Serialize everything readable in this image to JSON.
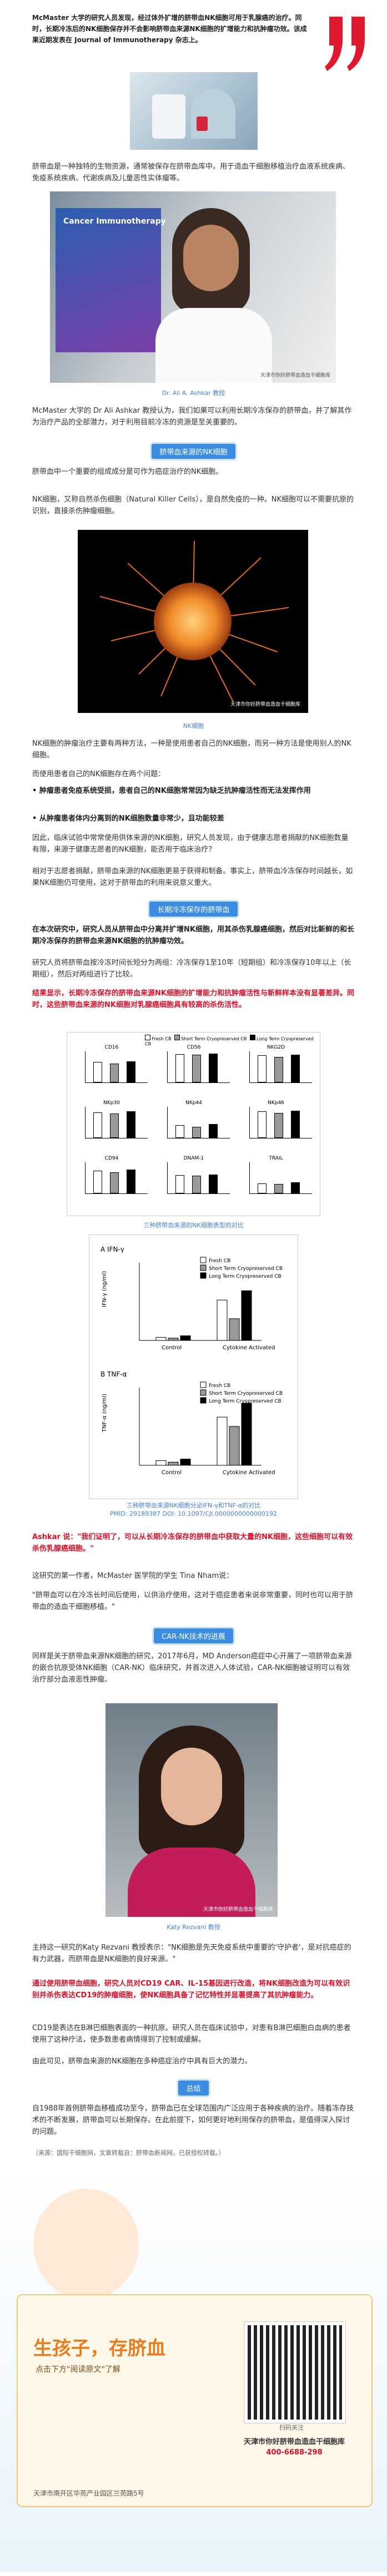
{
  "intro": {
    "text": "McMaster 大学的研究人员发现，经过体外扩增的脐带血NK细胞可用于乳腺癌的治疗。同时，长期冷冻后的NK细胞保存并不会影响脐带血来源NK细胞的扩增能力和抗肿瘤功效。该成果近期发表在 Journal of Immunotherapy 杂志上。",
    "quote_color": "#e0182d"
  },
  "para1": "脐带血是一种独特的生物资源，通常被保存在脐带血库中。用于造血干细胞移植治疗血液系统疾病、免疫系统疾病、代谢疾病及儿童恶性实体瘤等。",
  "photo1_caption": "Dr. Ali A. Ashkar 教授",
  "photo1_labels": {
    "poster_title": "Cancer Immunotherapy",
    "watermark": "天津市你好脐带血造血干细胞库"
  },
  "para2": "McMaster 大学的 Dr Ali Ashkar 教授认为，我们如果可以利用长期冷冻保存的脐带血，并了解其作为治疗产品的全部潜力，对于利用目前冷冻的资源是至关重要的。",
  "heading1": "脐带血来源的NK细胞",
  "para3": "脐带血中一个重要的组成成分是可作为癌症治疗的NK细胞。",
  "para4": "NK细胞，又称自然杀伤细胞（Natural Killer Cells），是自然免疫的一种。NK细胞可以不需要抗原的识别，直接杀伤肿瘤细胞。",
  "photo2_caption": "NK细胞",
  "photo2_watermark": "天津市你好脐带血造血干细胞库",
  "para5": "NK细胞的肿瘤治疗主要有两种方法，一种是使用患者自己的NK细胞，而另一种方法是使用别人的NK细胞。",
  "para6": "而使用患者自己的NK细胞存在两个问题：",
  "bullet1": "• 肿瘤患者免疫系统受损，患者自己的NK细胞常常因为缺乏抗肿瘤活性而无法发挥作用",
  "bullet2": "• 从肿瘤患者体内分离到的NK细胞数量非常少，且功能较差",
  "para7": "因此，临床试验中常常使用供体来源的NK细胞，研究人员发现，由于健康志愿者捐献的NK细胞数量有限，来源于健康志愿者的NK细胞，能否用于临床治疗？",
  "para8": "相对于志愿者捐献，脐带血来源的NK细胞更易于获得和制备。事实上，脐带血冷冻保存时间越长，如果NK细胞仍可使用，这对于脐带血的利用来说意义重大。",
  "heading2": "长期冷冻保存的脐带血",
  "para9": "在本次研究中，研究人员从脐带血中分离并扩增NK细胞，用其杀伤乳腺癌细胞，然后对比新鲜的和长期冷冻保存的脐带血来源NK细胞的抗肿瘤功效。",
  "para10": "研究人员将脐带血按冷冻时间长短分为两组：冷冻保存1至10年（短期组）和冷冻保存10年以上（长期组），然后对两组进行了比较。",
  "para11_red": "结果显示，长期冷冻保存的脐带血来源NK细胞的扩增能力和抗肿瘤活性与新鲜样本没有显著差异。同时，这些脐带血来源的NK细胞对乳腺癌细胞具有较高的杀伤活性。",
  "chart1_caption": "三种脐带血来源的NK细胞表型的对比",
  "chart1_legend": [
    "Fresh CB",
    "Short Term Cryopreserved CB",
    "Long Term Cryopreserved CB"
  ],
  "chart1_panels": [
    "CD16",
    "CD56",
    "NKG2D",
    "NKp30",
    "NKp44",
    "NKp46",
    "CD94",
    "DNAM-1",
    "TRAIL"
  ],
  "chart_data": [
    {
      "type": "bar",
      "title": "三种脐带血来源NK细胞表型对比",
      "categories": [
        "CD16",
        "CD56",
        "NKG2D",
        "NKp30",
        "NKp44",
        "NKp46",
        "CD94",
        "DNAM-1",
        "TRAIL"
      ],
      "series": [
        {
          "name": "Fresh CB",
          "values": [
            68,
            95,
            90,
            85,
            40,
            88,
            75,
            60,
            30
          ]
        },
        {
          "name": "Short Term Cryopreserved CB",
          "values": [
            62,
            92,
            85,
            80,
            35,
            82,
            70,
            58,
            28
          ]
        },
        {
          "name": "Long Term Cryopreserved CB",
          "values": [
            70,
            96,
            92,
            88,
            45,
            90,
            78,
            62,
            34
          ]
        }
      ]
    },
    {
      "type": "bar",
      "title": "A IFN-γ",
      "categories": [
        "Control",
        "Cytokine Activated"
      ],
      "series": [
        {
          "name": "Fresh CB",
          "values": [
            0.2,
            2.6
          ]
        },
        {
          "name": "Short Term Cryopreserved CB",
          "values": [
            0.15,
            1.4
          ]
        },
        {
          "name": "Long Term Cryopreserved CB",
          "values": [
            0.3,
            3.2
          ]
        }
      ],
      "ylabel": "IFN-γ (ng/ml)"
    },
    {
      "type": "bar",
      "title": "B TNF-α",
      "categories": [
        "Control",
        "Cytokine Activated"
      ],
      "series": [
        {
          "name": "Fresh CB",
          "values": [
            0.3,
            3.1
          ]
        },
        {
          "name": "Short Term Cryopreserved CB",
          "values": [
            0.2,
            2.5
          ]
        },
        {
          "name": "Long Term Cryopreserved CB",
          "values": [
            0.4,
            4.0
          ]
        }
      ],
      "ylabel": "TNF-α (ng/ml)"
    }
  ],
  "chart2_caption1": "三种脐带血来源NK细胞分泌IFN-γ和TNF-α的对比",
  "chart2_caption2": "PMID: 29189387 DOI: 10.1097/CJI.0000000000000192",
  "para12_red": "Ashkar 说：\"我们证明了，可以从长期冷冻保存的脐带血中获取大量的NK细胞，这些细胞可以有效杀伤乳腺癌细胞。\"",
  "para13": "这研究的第一作者，McMaster 医学院的学生 Tina Nham说：",
  "para14": "\"脐带血可以在冷冻长时间后使用，以供治疗使用，这对于癌症患者来说非常重要，同时也可以用于脐带血的造血干细胞移植。\"",
  "heading3": "CAR-NK技术的进展",
  "para15": "同样是关于脐带血来源NK细胞的研究，2017年6月，MD Anderson癌症中心开展了一项脐带血来源的嵌合抗原受体NK细胞（CAR-NK）临床研究，并首次进入人体试验，CAR-NK细胞被证明可以有效治疗部分血液恶性肿瘤。",
  "photo3_caption": "Katy Rezvani 教授",
  "photo3_watermark": "天津市你好脐带血造血干细胞库",
  "para16": "主持这一研究的Katy Rezvani 教授表示：\"NK细胞是先天免疫系统中重要的'守护者'，是对抗癌症的有力武器，而脐带血是NK细胞的良好来源。\"",
  "para17_red": "通过使用脐带血细胞，研究人员对CD19 CAR、IL-15基因进行改造，将NK细胞改造为可以有效识别并杀伤表达CD19的肿瘤细胞，使NK细胞具备了记忆特性并显著提高了其抗肿瘤能力。",
  "para18": "CD19是表达在B淋巴细胞表面的一种抗原。研究人员在临床试验中，对患有B淋巴细胞白血病的患者使用了这种疗法，使多数患者病情得到了控制或缓解。",
  "para19": "由此可见，脐带血来源的NK细胞在多种癌症治疗中具有巨大的潜力。",
  "heading4": "总结",
  "para20": "自1988年首例脐带血移植成功至今，脐带血已在全球范围内广泛应用于各种疾病的治疗。随着冻存技术的不断发展，脐带血可以长期保存。在此前提下，如何更好地利用保存的脐带血，是值得深入探讨的问题。",
  "para21": "（来源：国际干细胞网，文章转载自：脐带血新闻网，已获授权转载。）",
  "footer": {
    "slogan1": "生孩子，存脐血",
    "slogan2": "点击下方\"阅读原文\"了解",
    "org_name": "天津市你好脐带血造血干细胞库",
    "phone": "400-6688-298",
    "address": "天津市南开区华苑产业园区兰苑路5号",
    "qr_label": "扫码关注"
  }
}
